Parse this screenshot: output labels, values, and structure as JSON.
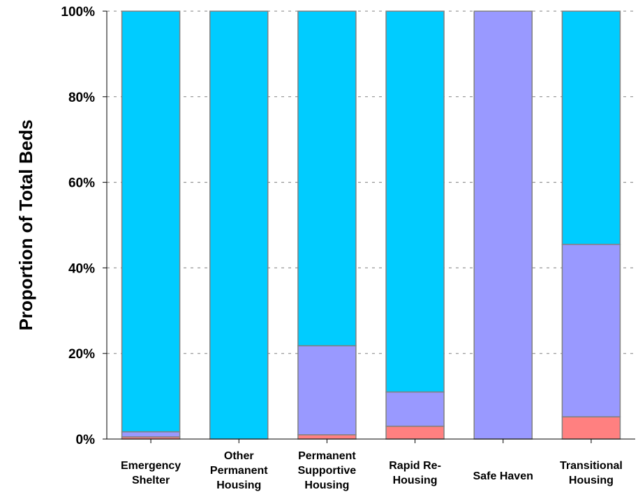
{
  "chart_data": {
    "type": "bar",
    "stacked": true,
    "title": "",
    "xlabel": "",
    "ylabel": "Proportion of Total Beds",
    "ylim": [
      0,
      100
    ],
    "yticks": [
      "0%",
      "20%",
      "40%",
      "60%",
      "80%",
      "100%"
    ],
    "grid": "horizontal-dashed",
    "categories": [
      [
        "Emergency",
        "Shelter"
      ],
      [
        "Other",
        "Permanent",
        "Housing"
      ],
      [
        "Permanent",
        "Supportive",
        "Housing"
      ],
      [
        "Rapid Re-",
        "Housing"
      ],
      [
        "Safe Haven"
      ],
      [
        "Transitional",
        "Housing"
      ]
    ],
    "series": [
      {
        "color": "#ff8080",
        "values": [
          0.5,
          0,
          1,
          3,
          0,
          5.2
        ]
      },
      {
        "color": "#9999ff",
        "values": [
          1.2,
          0,
          20.8,
          8,
          100,
          40.3
        ]
      },
      {
        "color": "#00ccff",
        "values": [
          98.3,
          100,
          78.2,
          89,
          0,
          54.5
        ]
      }
    ]
  }
}
